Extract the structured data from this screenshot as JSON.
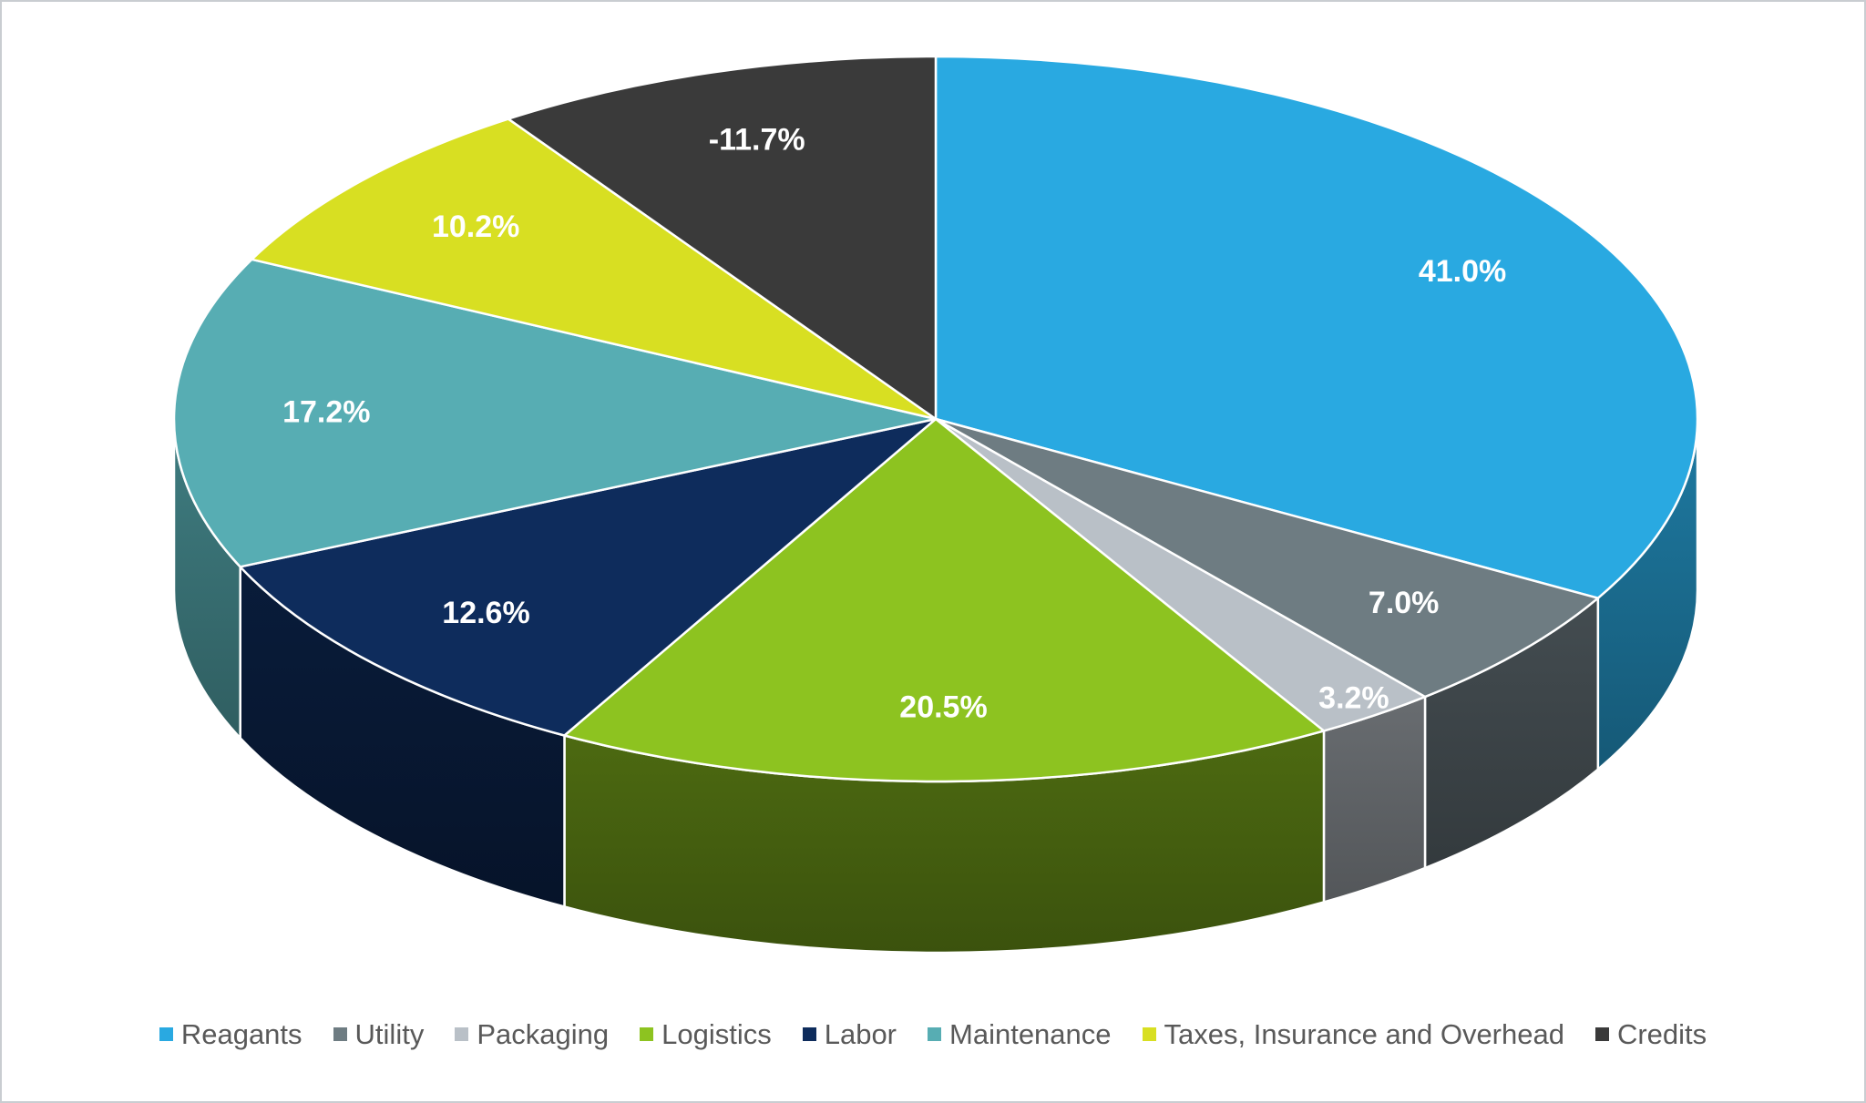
{
  "chart": {
    "background": "#FFFFFF",
    "border_color": "#C9CDD1"
  },
  "chart_data": {
    "type": "pie",
    "style": "3d",
    "title": "",
    "legend_position": "bottom",
    "label_format": "percent",
    "label_color": "#FFFFFF",
    "legend_text_color": "#595959",
    "start_angle_deg": 0,
    "direction": "clockwise",
    "slices": [
      {
        "label": "Reagants",
        "value": 41.0,
        "display": "41.0%",
        "color": "#29A9E1"
      },
      {
        "label": "Utility",
        "value": 7.0,
        "display": "7.0%",
        "color": "#6E7C82"
      },
      {
        "label": "Packaging",
        "value": 3.2,
        "display": "3.2%",
        "color": "#B9C0C7"
      },
      {
        "label": "Logistics",
        "value": 20.5,
        "display": "20.5%",
        "color": "#8DC320"
      },
      {
        "label": "Labor",
        "value": 12.6,
        "display": "12.6%",
        "color": "#0E2C5C"
      },
      {
        "label": "Maintenance",
        "value": 17.2,
        "display": "17.2%",
        "color": "#57ADB3"
      },
      {
        "label": "Taxes, Insurance and Overhead",
        "value": 10.2,
        "display": "10.2%",
        "color": "#D8DF22"
      },
      {
        "label": "Credits",
        "value": -11.7,
        "display": "-11.7%",
        "color": "#3A3A3A"
      }
    ]
  }
}
